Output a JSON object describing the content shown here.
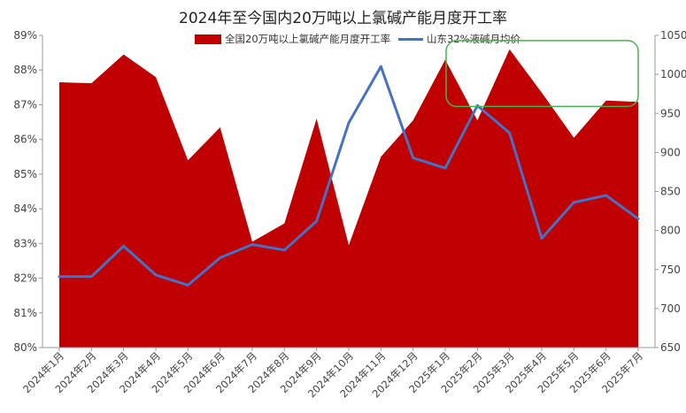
{
  "chart_data": {
    "type": "area",
    "title": "2024年至今国内20万吨以上氯碱产能月度开工率",
    "categories": [
      "2024年1月",
      "2024年2月",
      "2024年3月",
      "2024年4月",
      "2024年5月",
      "2024年6月",
      "2024年7月",
      "2024年8月",
      "2024年9月",
      "2024年10月",
      "2024年11月",
      "2024年12月",
      "2025年1月",
      "2025年2月",
      "2025年3月",
      "2025年4月",
      "2025年5月",
      "2025年6月",
      "2025年7月"
    ],
    "series": [
      {
        "name": "全国20万吨以上氯碱产能月度开工率",
        "type": "area",
        "axis": "left",
        "color": "#C00000",
        "values": [
          87.65,
          87.62,
          88.45,
          87.8,
          85.4,
          86.35,
          83.05,
          83.58,
          86.6,
          82.95,
          85.5,
          86.55,
          88.3,
          86.55,
          88.6,
          87.35,
          86.05,
          87.12,
          87.08
        ]
      },
      {
        "name": "山东32%液碱月均价",
        "type": "line",
        "axis": "right",
        "color": "#4472C4",
        "values": [
          741,
          741,
          780,
          743,
          730,
          765,
          782,
          775,
          812,
          938,
          1010,
          893,
          880,
          960,
          925,
          790,
          836,
          845,
          815
        ]
      }
    ],
    "y_left": {
      "min": 80,
      "max": 89,
      "ticks": [
        "80%",
        "81%",
        "82%",
        "83%",
        "84%",
        "85%",
        "86%",
        "87%",
        "88%",
        "89%"
      ]
    },
    "y_right": {
      "min": 650,
      "max": 1050,
      "ticks": [
        "650",
        "700",
        "750",
        "800",
        "850",
        "900",
        "950",
        "1000",
        "1050"
      ]
    },
    "grid": false,
    "legend_position": "top",
    "highlight_box": {
      "color": "#4CAF50",
      "from_category": "2025年1月",
      "to_category": "2025年7月",
      "y_from": 88.85,
      "y_to": 86.95
    }
  }
}
